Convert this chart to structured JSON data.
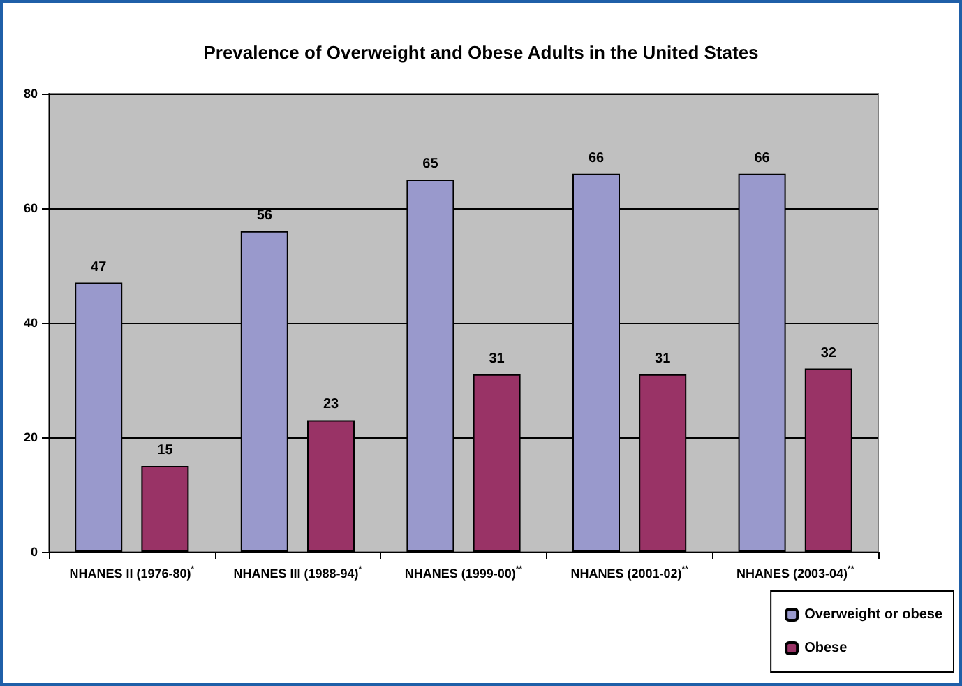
{
  "chart_data": {
    "type": "bar",
    "title": "Prevalence of Overweight and Obese Adults in the United States",
    "categories": [
      "NHANES II (1976-80)$^{*}$",
      "NHANES III (1988-94)$^{*}$",
      "NHANES (1999-00)$^{**}$",
      "NHANES (2001-02)$^{**}$",
      "NHANES (2003-04)$^{**}$"
    ],
    "series": [
      {
        "name": "Overweight or obese",
        "color": "#9999cc",
        "values": [
          47,
          56,
          65,
          66,
          66
        ]
      },
      {
        "name": "Obese",
        "color": "#993366",
        "values": [
          15,
          23,
          31,
          31,
          32
        ]
      }
    ],
    "ylim": [
      0,
      80
    ],
    "yticks": [
      0,
      20,
      40,
      60,
      80
    ],
    "grid": "y",
    "legend": "bottom right",
    "data_labels": true
  }
}
